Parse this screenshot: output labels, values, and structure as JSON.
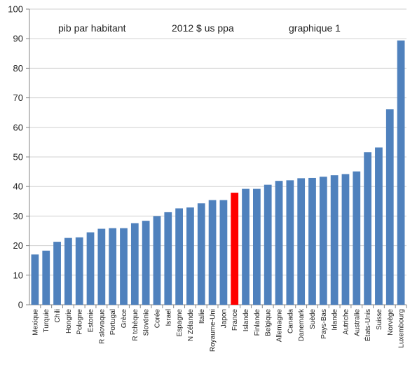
{
  "chart_data": {
    "type": "bar",
    "title": "",
    "xlabel": "",
    "ylabel": "",
    "ylim": [
      0,
      100
    ],
    "yticks": [
      0,
      10,
      20,
      30,
      40,
      50,
      60,
      70,
      80,
      90,
      100
    ],
    "grid": "horizontal",
    "annotations": [
      "pib par habitant",
      "2012 $ us ppa",
      "graphique 1"
    ],
    "colors": {
      "default": "#4f81bd",
      "highlight": "#ff0000"
    },
    "highlight_category": "France",
    "categories": [
      "Mexique",
      "Turquie",
      "Chili",
      "Hongrie",
      "Pologne",
      "Estonie",
      "R slovaque",
      "Portugal",
      "Grèce",
      "R tchèque",
      "Slovénie",
      "Corée",
      "Israel",
      "Espagne",
      "N Zélande",
      "Italie",
      "Royaume-Uni",
      "Japon",
      "France",
      "Islande",
      "Finlande",
      "Belgique",
      "Allemagne",
      "Canada",
      "Danemark",
      "Suède",
      "Pays-Bas",
      "Irlande",
      "Autriche",
      "Australie",
      "États-Unis",
      "Suisse",
      "Norvège",
      "Luxembourg"
    ],
    "values": [
      17.0,
      18.3,
      21.3,
      22.6,
      22.8,
      24.5,
      25.7,
      25.9,
      25.9,
      27.6,
      28.4,
      30.0,
      31.3,
      32.6,
      32.9,
      34.3,
      35.4,
      35.4,
      37.9,
      39.2,
      39.2,
      40.6,
      41.9,
      42.1,
      42.8,
      42.9,
      43.3,
      43.8,
      44.2,
      45.1,
      51.6,
      53.2,
      66.1,
      89.4
    ]
  }
}
